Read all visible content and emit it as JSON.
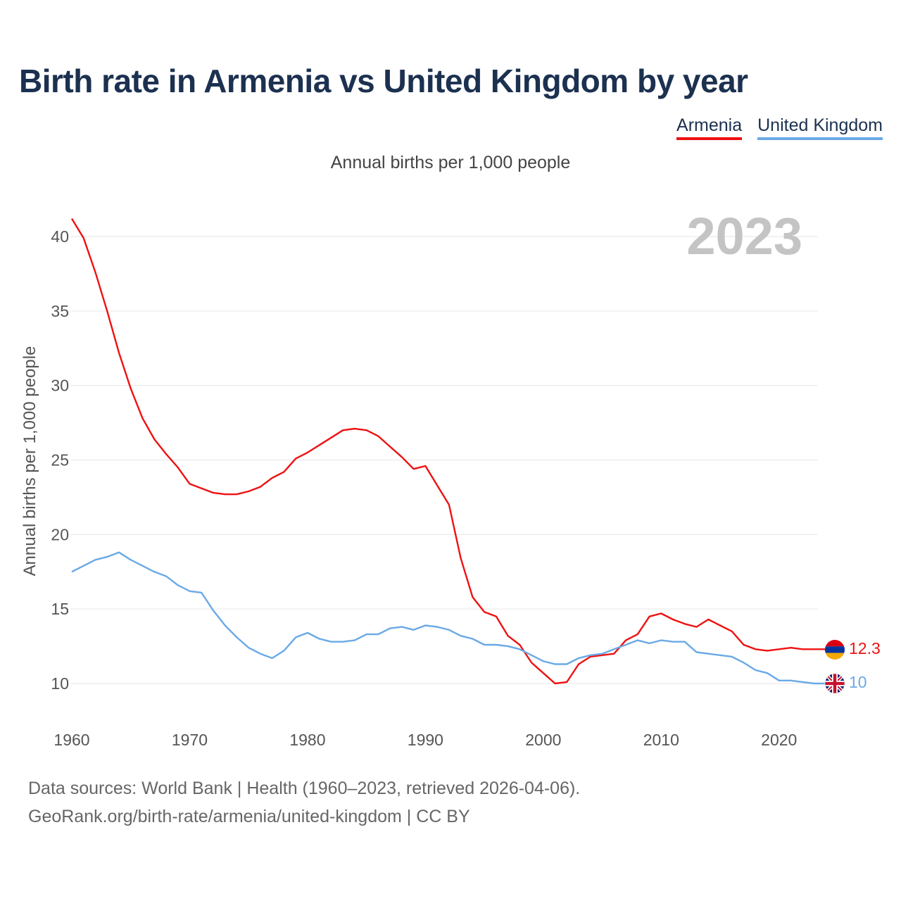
{
  "title": "Birth rate in Armenia vs United Kingdom by year",
  "subtitle": "Annual births per 1,000 people",
  "footer": {
    "line1": "Data sources: World Bank | Health (1960–2023, retrieved 2026-04-06).",
    "line2": "GeoRank.org/birth-rate/armenia/united-kingdom | CC BY"
  },
  "chart_data": {
    "type": "line",
    "title": "Birth rate in Armenia vs United Kingdom by year",
    "ylabel": "Annual births per 1,000 people",
    "xlabel": "",
    "year_watermark": "2023",
    "xlim": [
      1960,
      2023
    ],
    "ylim": [
      8,
      41.5
    ],
    "x_ticks": [
      1960,
      1970,
      1980,
      1990,
      2000,
      2010,
      2020
    ],
    "y_ticks": [
      10,
      15,
      20,
      25,
      30,
      35,
      40
    ],
    "grid": true,
    "legend_position": "top-right",
    "x": [
      1960,
      1961,
      1962,
      1963,
      1964,
      1965,
      1966,
      1967,
      1968,
      1969,
      1970,
      1971,
      1972,
      1973,
      1974,
      1975,
      1976,
      1977,
      1978,
      1979,
      1980,
      1981,
      1982,
      1983,
      1984,
      1985,
      1986,
      1987,
      1988,
      1989,
      1990,
      1991,
      1992,
      1993,
      1994,
      1995,
      1996,
      1997,
      1998,
      1999,
      2000,
      2001,
      2002,
      2003,
      2004,
      2005,
      2006,
      2007,
      2008,
      2009,
      2010,
      2011,
      2012,
      2013,
      2014,
      2015,
      2016,
      2017,
      2018,
      2019,
      2020,
      2021,
      2022,
      2023
    ],
    "series": [
      {
        "name": "Armenia",
        "color": "#ee1111",
        "end_label": "12.3",
        "values": [
          41.2,
          39.9,
          37.6,
          35.0,
          32.2,
          29.8,
          27.8,
          26.4,
          25.4,
          24.5,
          23.4,
          23.1,
          22.8,
          22.7,
          22.7,
          22.9,
          23.2,
          23.8,
          24.2,
          25.1,
          25.5,
          26.0,
          26.5,
          27.0,
          27.1,
          27.0,
          26.6,
          25.9,
          25.2,
          24.4,
          24.6,
          23.3,
          22.0,
          18.4,
          15.8,
          14.8,
          14.5,
          13.2,
          12.6,
          11.4,
          10.7,
          10.0,
          10.1,
          11.3,
          11.8,
          11.9,
          12.0,
          12.9,
          13.3,
          14.5,
          14.7,
          14.3,
          14.0,
          13.8,
          14.3,
          13.9,
          13.5,
          12.6,
          12.3,
          12.2,
          12.3,
          12.4,
          12.3,
          12.3
        ]
      },
      {
        "name": "United Kingdom",
        "color": "#6aa9e6",
        "end_label": "10",
        "values": [
          17.5,
          17.9,
          18.3,
          18.5,
          18.8,
          18.3,
          17.9,
          17.5,
          17.2,
          16.6,
          16.2,
          16.1,
          14.9,
          13.9,
          13.1,
          12.4,
          12.0,
          11.7,
          12.2,
          13.1,
          13.4,
          13.0,
          12.8,
          12.8,
          12.9,
          13.3,
          13.3,
          13.7,
          13.8,
          13.6,
          13.9,
          13.8,
          13.6,
          13.2,
          13.0,
          12.6,
          12.6,
          12.5,
          12.3,
          11.9,
          11.5,
          11.3,
          11.3,
          11.7,
          11.9,
          12.0,
          12.3,
          12.6,
          12.9,
          12.7,
          12.9,
          12.8,
          12.8,
          12.1,
          12.0,
          11.9,
          11.8,
          11.4,
          10.9,
          10.7,
          10.2,
          10.2,
          10.1,
          10.0
        ]
      }
    ]
  },
  "colors": {
    "title": "#1c3150",
    "armenia": "#ee1111",
    "uk": "#6aa9e6",
    "grid": "#e6e6e6",
    "watermark": "#c4c4c4"
  },
  "icons": {
    "armenia": "armenia-flag-icon",
    "uk": "uk-flag-icon"
  }
}
